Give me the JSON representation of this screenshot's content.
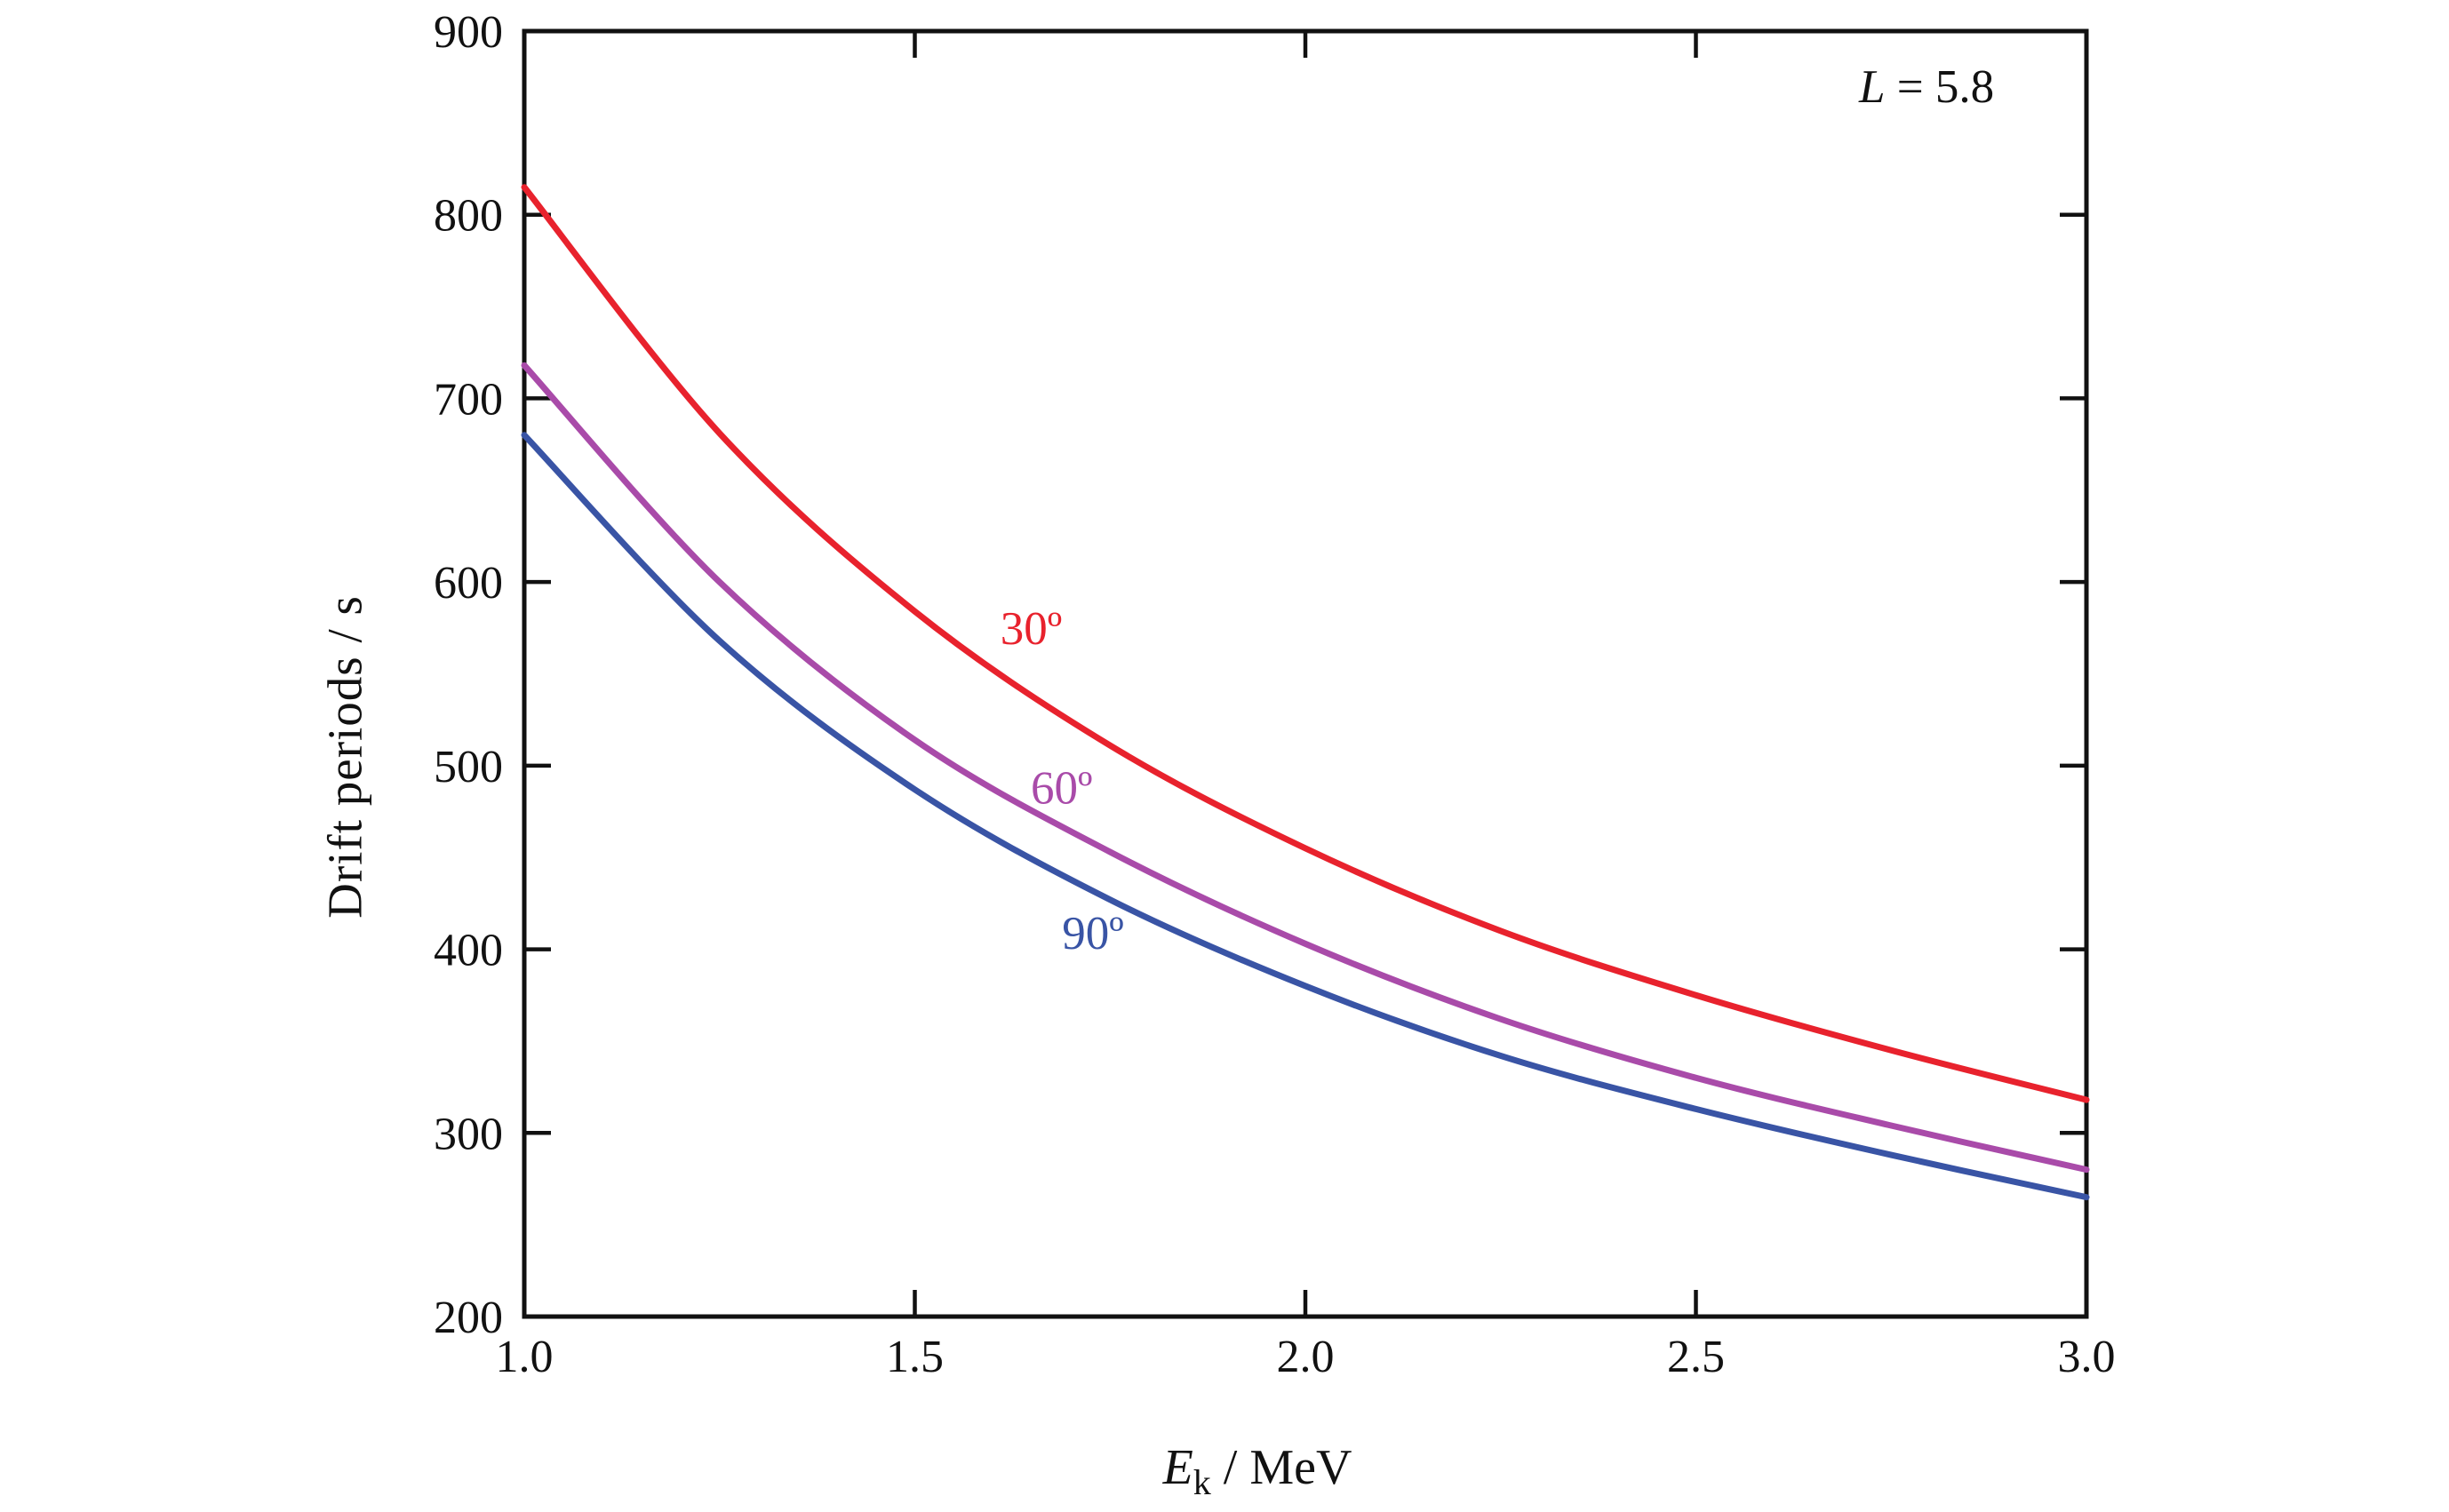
{
  "figure": {
    "annotation": {
      "variable": "L",
      "rest": " = 5.8"
    },
    "x_axis_title": {
      "symbol": "E",
      "subscript": "k",
      "unit": " / MeV"
    },
    "y_axis_title": "Drift periods / s"
  },
  "chart_data": {
    "type": "line",
    "title": "",
    "xlabel": "Ek / MeV",
    "ylabel": "Drift periods / s",
    "xlim": [
      1.0,
      3.0
    ],
    "ylim": [
      200,
      900
    ],
    "xticks": {
      "values": [
        1.0,
        1.5,
        2.0,
        2.5,
        3.0
      ],
      "labels": [
        "1.0",
        "1.5",
        "2.0",
        "2.5",
        "3.0"
      ]
    },
    "yticks": {
      "values": [
        200,
        300,
        400,
        500,
        600,
        700,
        800,
        900
      ],
      "labels": [
        "200",
        "300",
        "400",
        "500",
        "600",
        "700",
        "800",
        "900"
      ]
    },
    "grid": false,
    "legend": "inline curve labels colored per series",
    "annotation": "L = 5.8",
    "frame_color": "#111111",
    "x": [
      1.0,
      1.25,
      1.5,
      1.75,
      2.0,
      2.25,
      2.5,
      2.75,
      3.0
    ],
    "series": [
      {
        "name": "30 degrees pitch angle",
        "color": "#e8222d",
        "values": [
          815,
          681,
          584,
          511,
          455,
          410,
          375,
          345,
          318
        ],
        "label": {
          "text": "30º",
          "x": 1.649,
          "y": 575
        }
      },
      {
        "name": "60 degrees pitch angle",
        "color": "#a94ba9",
        "values": [
          718,
          600,
          514,
          453,
          403,
          362,
          330,
          304,
          280
        ],
        "label": {
          "text": "60º",
          "x": 1.688,
          "y": 488
        }
      },
      {
        "name": "90 degrees pitch angle",
        "color": "#3954a5",
        "values": [
          680,
          568,
          487,
          427,
          380,
          342,
          313,
          288,
          265
        ],
        "label": {
          "text": "90º",
          "x": 1.728,
          "y": 409
        }
      }
    ]
  }
}
